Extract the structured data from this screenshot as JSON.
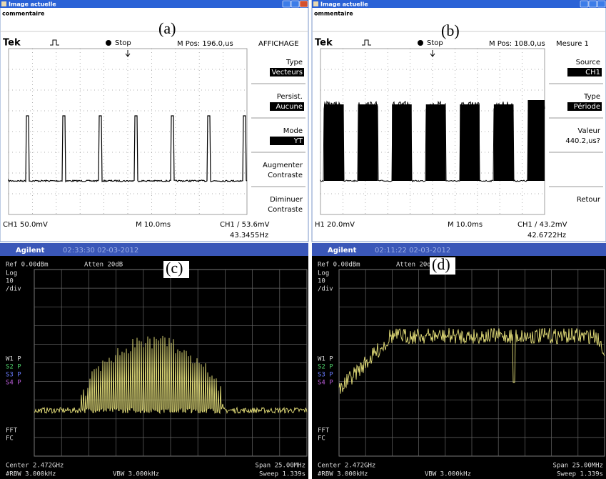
{
  "panels": [
    {
      "kind": "scope",
      "label": "(a)",
      "window_title": "Image actuelle",
      "comment": "commentaire",
      "brand": "Tek",
      "status": "Stop",
      "position": "M Pos: 196.0,us",
      "menu_title": "AFFICHAGE",
      "menu": [
        {
          "lines": [
            "Type"
          ],
          "highlight": "Vecteurs"
        },
        {
          "lines": [
            "Persist."
          ],
          "highlight": "Aucune"
        },
        {
          "lines": [
            "Mode"
          ],
          "highlight": "YT"
        },
        {
          "lines": [
            "Augmenter",
            "Contraste"
          ]
        },
        {
          "lines": [
            "Diminuer",
            "Contraste"
          ]
        }
      ],
      "channel": "CH1  50.0mV",
      "timebase": "M 10.0ms",
      "trigger": "CH1 ∕ 53.6mV",
      "frequency": "43.3455Hz"
    },
    {
      "kind": "scope",
      "label": "(b)",
      "window_title": "Image actuelle",
      "comment": "ommentaire",
      "brand": "Tek",
      "status": "Stop",
      "position": "M Pos: 108.0,us",
      "menu_title": "Mesure 1",
      "menu": [
        {
          "lines": [
            "Source"
          ],
          "highlight": "CH1"
        },
        {
          "lines": [
            "Type"
          ],
          "highlight": "Période"
        },
        {
          "lines": [
            "Valeur",
            "440.2,us?"
          ]
        },
        {
          "lines": []
        },
        {
          "lines": [
            "Retour"
          ]
        }
      ],
      "channel": "H1  20.0mV",
      "timebase": "M 10.0ms",
      "trigger": "CH1 ∕ 43.2mV",
      "frequency": "42.6722Hz"
    },
    {
      "kind": "spectrum",
      "label": "(c)",
      "brand": "Agilent",
      "timestamp": "02:33:30 02-03-2012",
      "reference": "Ref 0.00dBm",
      "attenuation": "Atten 20dB",
      "scale": [
        "Log",
        "10",
        "/div"
      ],
      "traces": [
        "W1 P",
        "S2 P",
        "S3 P",
        "S4 P"
      ],
      "mode": [
        "FFT",
        "FC"
      ],
      "center": "Center 2.472GHz",
      "span": "Span 25.00MHz",
      "rbw": "#RBW 3.000kHz",
      "vbw": "VBW 3.000kHz",
      "sweep": "Sweep 1.339s"
    },
    {
      "kind": "spectrum",
      "label": "(d)",
      "brand": "Agilent",
      "timestamp": "02:11:22 02-03-2012",
      "reference": "Ref 0.00dBm",
      "attenuation": "Atten 20dB",
      "scale": [
        "Log",
        "10",
        "/div"
      ],
      "traces": [
        "W1 P",
        "S2 P",
        "S3 P",
        "S4 P"
      ],
      "mode": [
        "FFT",
        "FC"
      ],
      "center": "Center 2.472GHz",
      "span": "Span 25.00MHz",
      "rbw": "#RBW 3.000kHz",
      "vbw": "VBW 3.000kHz",
      "sweep": "Sweep 1.339s"
    }
  ]
}
